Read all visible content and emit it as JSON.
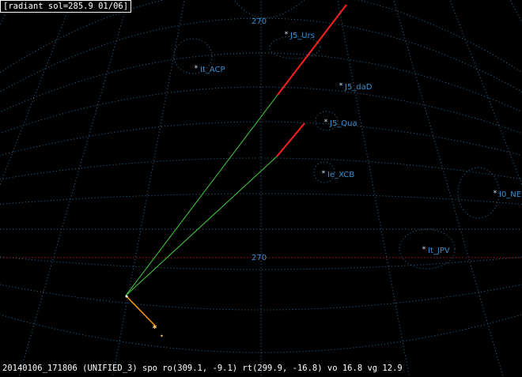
{
  "header": {
    "title": "[radiant sol=285.9 01/06]"
  },
  "status": {
    "text": "20140106_171806 (UNIFIED_3) spo ro(309.1, -9.1) rt(299.9, -16.8) vo 16.8 vg 12.9"
  },
  "grid": {
    "top_label": "270",
    "bottom_label": "270"
  },
  "showers": [
    {
      "name": "J5_Urs"
    },
    {
      "name": "It_ACP"
    },
    {
      "name": "J5_daD"
    },
    {
      "name": "J5_Qua"
    },
    {
      "name": "Ie_XCB"
    },
    {
      "name": "I0_NE"
    },
    {
      "name": "It_JPV"
    }
  ],
  "colors": {
    "grid": "#2f6f9a",
    "label": "#3a8fd0",
    "meteor_fast": "#ff2020",
    "meteor_slow": "#40d040",
    "trail": "#ff9900",
    "star": "#ffd060",
    "horizon": "#7a1a1a"
  }
}
